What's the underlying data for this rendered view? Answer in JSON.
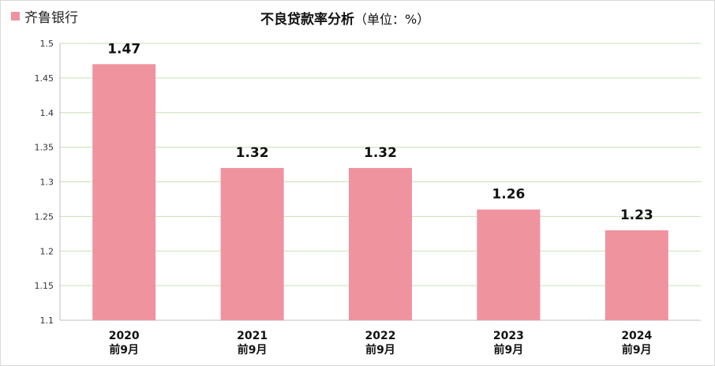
{
  "legend": {
    "label": "齐鲁银行"
  },
  "title": {
    "main": "不良贷款率分析",
    "unit": "（单位：%）"
  },
  "colors": {
    "bar": "#ef939e",
    "grid": "#c6e0b4",
    "axis": "#bfbfbf"
  },
  "chart_data": {
    "type": "bar",
    "title": "不良贷款率分析（单位：%）",
    "categories": [
      [
        "2020",
        "前9月"
      ],
      [
        "2021",
        "前9月"
      ],
      [
        "2022",
        "前9月"
      ],
      [
        "2023",
        "前9月"
      ],
      [
        "2024",
        "前9月"
      ]
    ],
    "series": [
      {
        "name": "齐鲁银行",
        "values": [
          1.47,
          1.32,
          1.32,
          1.26,
          1.23
        ]
      }
    ],
    "data_labels": [
      "1.47",
      "1.32",
      "1.32",
      "1.26",
      "1.23"
    ],
    "yticks": [
      "1.1",
      "1.15",
      "1.2",
      "1.25",
      "1.3",
      "1.35",
      "1.4",
      "1.45",
      "1.5"
    ],
    "ylim": [
      1.1,
      1.5
    ],
    "grid": true,
    "legend_position": "top-left"
  }
}
